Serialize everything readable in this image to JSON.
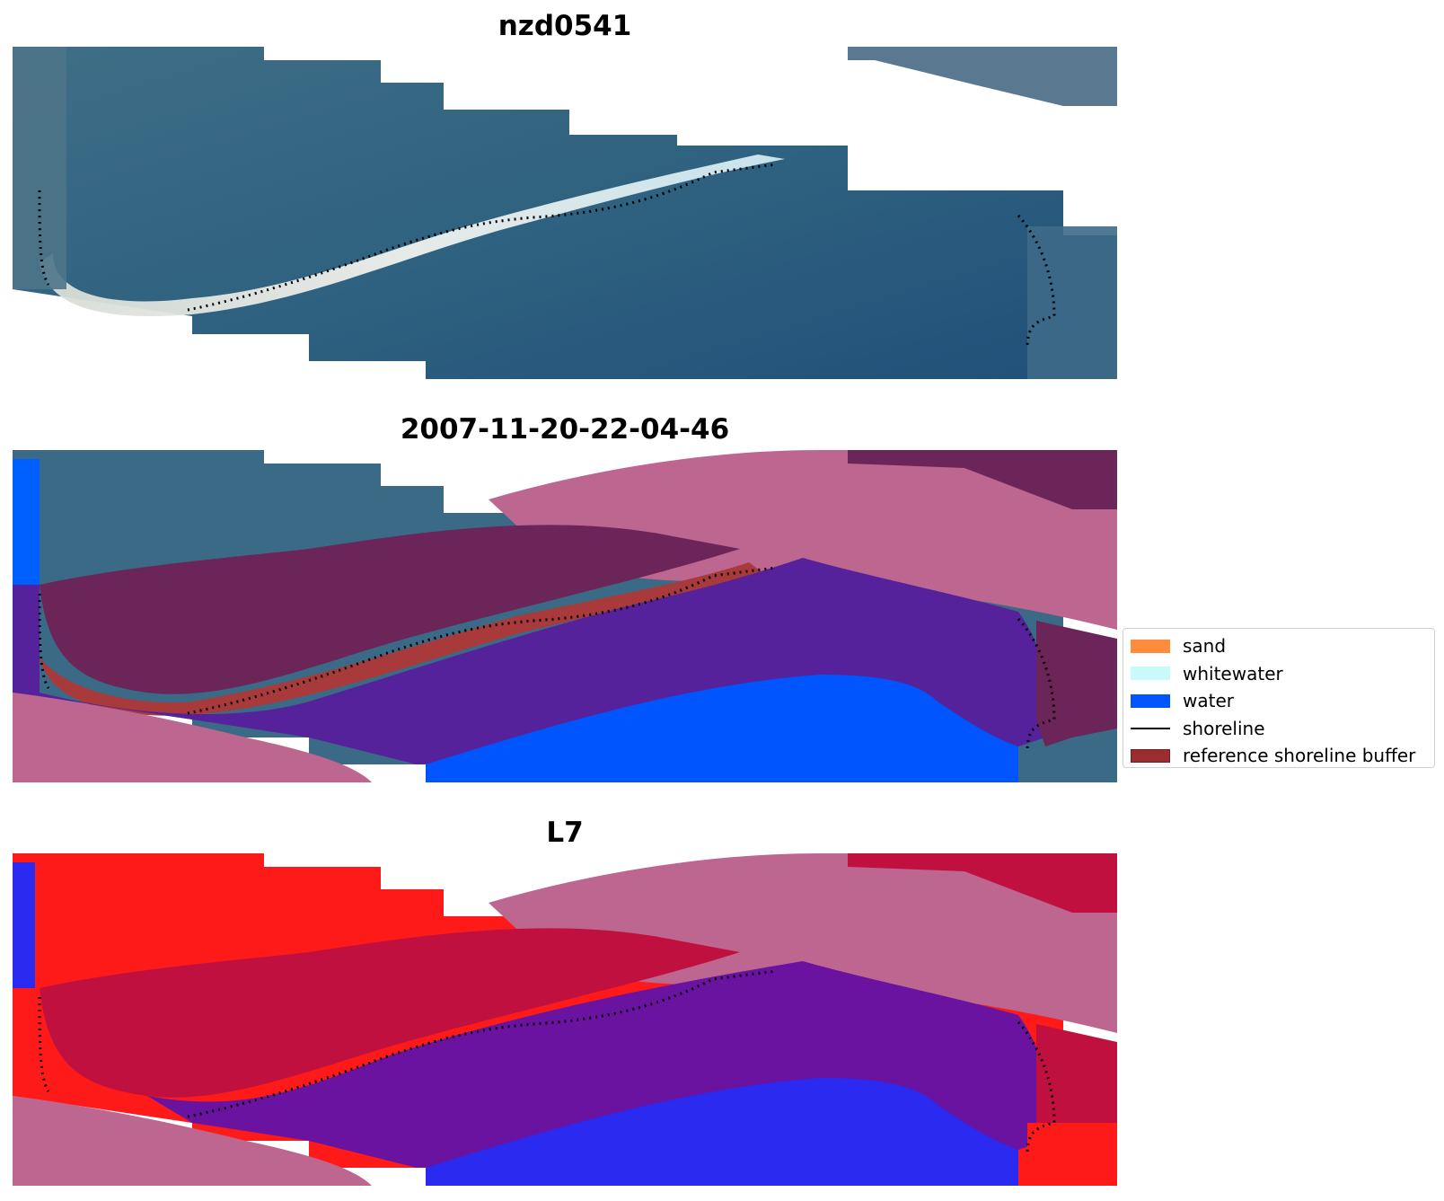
{
  "panels": [
    {
      "title": "nzd0541",
      "kind": "rgb-image"
    },
    {
      "title": "2007-11-20-22-04-46",
      "kind": "classified-overlay"
    },
    {
      "title": "L7",
      "kind": "index-overlay"
    }
  ],
  "legend": {
    "items": [
      {
        "label": "sand",
        "type": "patch",
        "color": "#ff8c3a"
      },
      {
        "label": "whitewater",
        "type": "patch",
        "color": "#c8fafa"
      },
      {
        "label": "water",
        "type": "patch",
        "color": "#0055ff"
      },
      {
        "label": "shoreline",
        "type": "line",
        "color": "#000000"
      },
      {
        "label": "reference shoreline buffer",
        "type": "patch",
        "color": "#9b2d30"
      }
    ]
  },
  "colors": {
    "sea_dark": "#2c5a78",
    "sea_mid": "#3a6d8c",
    "beach_white": "#e6ebe8",
    "buffer_pink": "#bc6690",
    "land_dark_maroon": "#6b2558",
    "water_purple": "#55229c",
    "water_blue": "#0055ff",
    "buffer_red": "#a83a3c",
    "index_red": "#ff1a1a",
    "index_crimson": "#c01040",
    "index_purple": "#6a13a0",
    "index_blue": "#2a2af0"
  }
}
